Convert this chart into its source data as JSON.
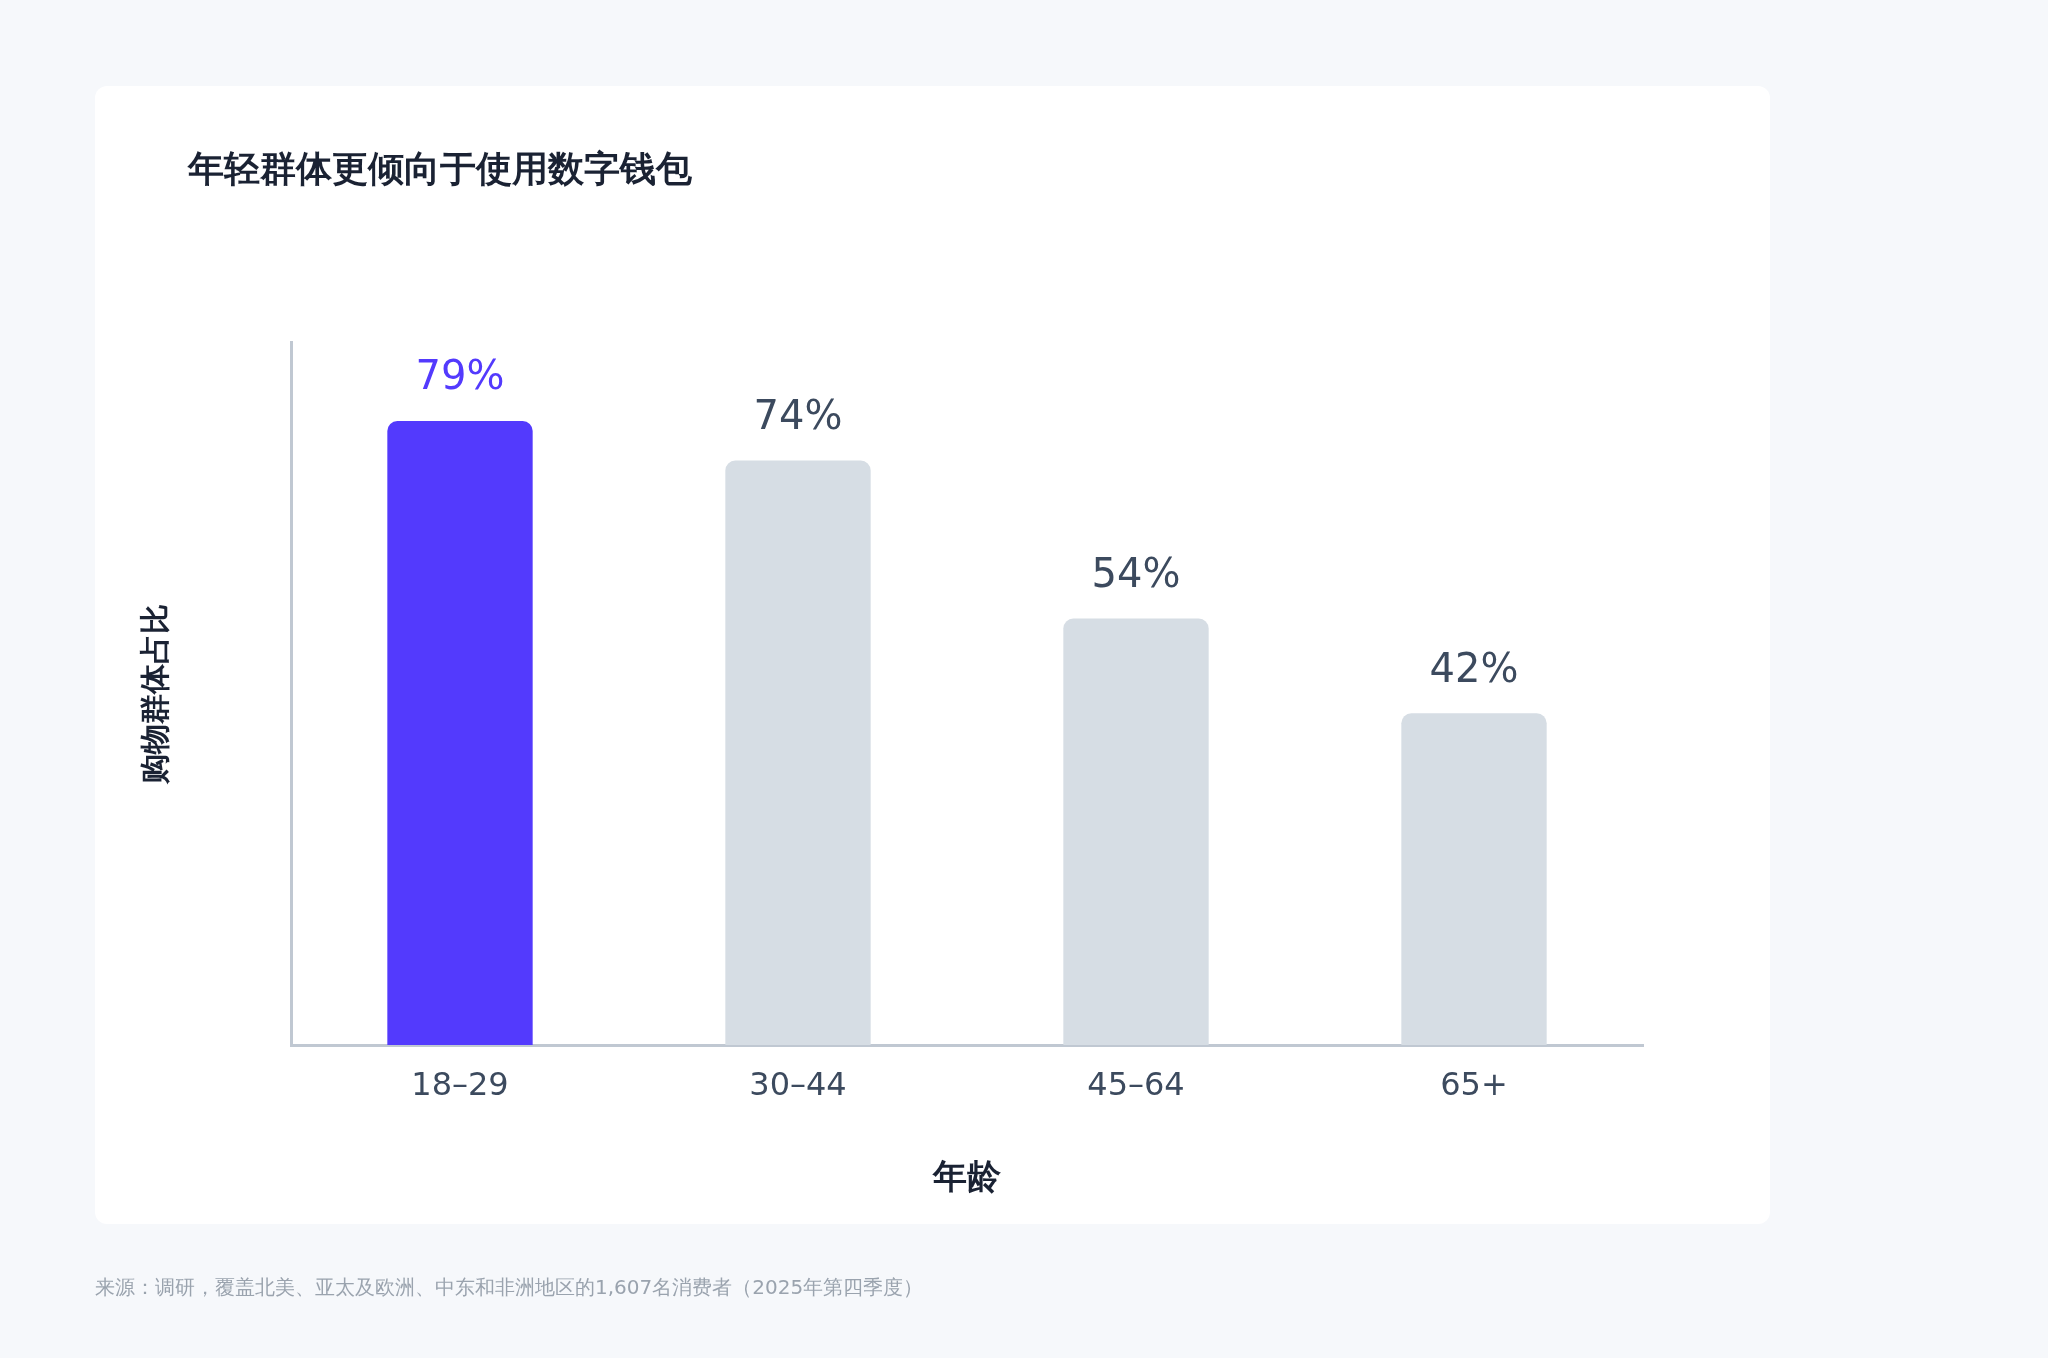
{
  "chart_data": {
    "type": "bar",
    "title": "年轻群体更倾向于使用数字钱包",
    "xlabel": "年龄",
    "ylabel": "购物群体占比",
    "categories": [
      "18–29",
      "30–44",
      "45–64",
      "65+"
    ],
    "values": [
      79,
      74,
      54,
      42
    ],
    "colors": [
      "#533afd",
      "#d6dde4",
      "#d6dde4",
      "#d6dde4"
    ],
    "value_labels": [
      "79%",
      "74%",
      "54%",
      "42%"
    ],
    "ylim": [
      0,
      89
    ],
    "tick_labels": "x",
    "grid": false,
    "legend": false,
    "annotations": [
      "来源：调研，覆盖北美、亚太及欧洲、中东和非洲地区的1,607名消费者（2025年第四季度）"
    ]
  }
}
